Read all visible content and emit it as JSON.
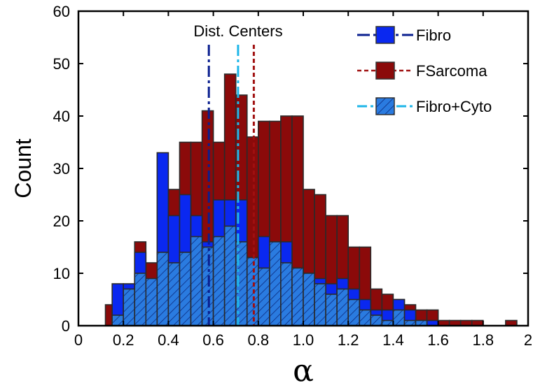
{
  "chart_data": {
    "type": "bar",
    "title": "",
    "xlabel": "α",
    "ylabel": "Count",
    "xlim": [
      0,
      2
    ],
    "ylim": [
      0,
      60
    ],
    "bin_width": 0.05,
    "x_ticks": [
      "0",
      "0.2",
      "0.4",
      "0.6",
      "0.8",
      "1.0",
      "1.2",
      "1.4",
      "1.6",
      "1.8",
      "2"
    ],
    "y_ticks": [
      "0",
      "10",
      "20",
      "30",
      "40",
      "50",
      "60"
    ],
    "legend_placement": "top-right",
    "annotation": "Dist. Centers",
    "series": [
      {
        "name": "FSarcoma",
        "color": "#8B0A0A",
        "bins": [
          {
            "x0": 0.12,
            "x1": 0.15,
            "y": 4
          },
          {
            "x0": 0.25,
            "x1": 0.3,
            "y": 16
          },
          {
            "x0": 0.3,
            "x1": 0.35,
            "y": 12
          },
          {
            "x0": 0.4,
            "x1": 0.45,
            "y": 26
          },
          {
            "x0": 0.45,
            "x1": 0.5,
            "y": 35
          },
          {
            "x0": 0.5,
            "x1": 0.55,
            "y": 35
          },
          {
            "x0": 0.55,
            "x1": 0.6,
            "y": 41
          },
          {
            "x0": 0.6,
            "x1": 0.65,
            "y": 35
          },
          {
            "x0": 0.65,
            "x1": 0.7,
            "y": 48
          },
          {
            "x0": 0.7,
            "x1": 0.75,
            "y": 44
          },
          {
            "x0": 0.75,
            "x1": 0.8,
            "y": 36
          },
          {
            "x0": 0.8,
            "x1": 0.85,
            "y": 39
          },
          {
            "x0": 0.85,
            "x1": 0.9,
            "y": 39
          },
          {
            "x0": 0.9,
            "x1": 0.95,
            "y": 40
          },
          {
            "x0": 0.95,
            "x1": 1.0,
            "y": 40
          },
          {
            "x0": 1.0,
            "x1": 1.05,
            "y": 26
          },
          {
            "x0": 1.05,
            "x1": 1.1,
            "y": 25
          },
          {
            "x0": 1.1,
            "x1": 1.15,
            "y": 21
          },
          {
            "x0": 1.15,
            "x1": 1.2,
            "y": 21
          },
          {
            "x0": 1.2,
            "x1": 1.25,
            "y": 15
          },
          {
            "x0": 1.25,
            "x1": 1.3,
            "y": 15
          },
          {
            "x0": 1.3,
            "x1": 1.35,
            "y": 7
          },
          {
            "x0": 1.35,
            "x1": 1.4,
            "y": 6
          },
          {
            "x0": 1.4,
            "x1": 1.45,
            "y": 5
          },
          {
            "x0": 1.45,
            "x1": 1.5,
            "y": 4
          },
          {
            "x0": 1.5,
            "x1": 1.55,
            "y": 3
          },
          {
            "x0": 1.55,
            "x1": 1.6,
            "y": 3
          },
          {
            "x0": 1.6,
            "x1": 1.65,
            "y": 1
          },
          {
            "x0": 1.65,
            "x1": 1.7,
            "y": 1
          },
          {
            "x0": 1.7,
            "x1": 1.75,
            "y": 1
          },
          {
            "x0": 1.75,
            "x1": 1.8,
            "y": 1
          },
          {
            "x0": 1.9,
            "x1": 1.95,
            "y": 1
          }
        ]
      },
      {
        "name": "Fibro",
        "color": "#0A28F0",
        "bins": [
          {
            "x0": 0.15,
            "x1": 0.2,
            "y": 8
          },
          {
            "x0": 0.2,
            "x1": 0.25,
            "y": 8
          },
          {
            "x0": 0.25,
            "x1": 0.3,
            "y": 14
          },
          {
            "x0": 0.3,
            "x1": 0.35,
            "y": 7
          },
          {
            "x0": 0.35,
            "x1": 0.4,
            "y": 33
          },
          {
            "x0": 0.4,
            "x1": 0.45,
            "y": 21
          },
          {
            "x0": 0.45,
            "x1": 0.5,
            "y": 25
          },
          {
            "x0": 0.5,
            "x1": 0.55,
            "y": 21
          },
          {
            "x0": 0.55,
            "x1": 0.6,
            "y": 16
          },
          {
            "x0": 0.6,
            "x1": 0.65,
            "y": 24
          },
          {
            "x0": 0.65,
            "x1": 0.7,
            "y": 24
          },
          {
            "x0": 0.7,
            "x1": 0.75,
            "y": 24
          },
          {
            "x0": 0.75,
            "x1": 0.8,
            "y": 13
          },
          {
            "x0": 0.8,
            "x1": 0.85,
            "y": 17
          },
          {
            "x0": 0.85,
            "x1": 0.9,
            "y": 14
          },
          {
            "x0": 0.9,
            "x1": 0.95,
            "y": 16
          },
          {
            "x0": 0.95,
            "x1": 1.0,
            "y": 11
          },
          {
            "x0": 1.0,
            "x1": 1.05,
            "y": 10
          },
          {
            "x0": 1.05,
            "x1": 1.1,
            "y": 9
          },
          {
            "x0": 1.1,
            "x1": 1.15,
            "y": 8
          },
          {
            "x0": 1.15,
            "x1": 1.2,
            "y": 9
          },
          {
            "x0": 1.2,
            "x1": 1.25,
            "y": 7
          },
          {
            "x0": 1.25,
            "x1": 1.3,
            "y": 5
          },
          {
            "x0": 1.3,
            "x1": 1.35,
            "y": 3
          },
          {
            "x0": 1.35,
            "x1": 1.4,
            "y": 3
          },
          {
            "x0": 1.4,
            "x1": 1.45,
            "y": 5
          },
          {
            "x0": 1.45,
            "x1": 1.5,
            "y": 3
          },
          {
            "x0": 1.5,
            "x1": 1.55,
            "y": 1
          },
          {
            "x0": 1.55,
            "x1": 1.6,
            "y": 1
          }
        ]
      },
      {
        "name": "Fibro+Cyto",
        "color": "#2A7BE0",
        "bins": [
          {
            "x0": 0.15,
            "x1": 0.2,
            "y": 2
          },
          {
            "x0": 0.2,
            "x1": 0.25,
            "y": 7
          },
          {
            "x0": 0.25,
            "x1": 0.3,
            "y": 10
          },
          {
            "x0": 0.3,
            "x1": 0.35,
            "y": 9
          },
          {
            "x0": 0.35,
            "x1": 0.4,
            "y": 14
          },
          {
            "x0": 0.4,
            "x1": 0.45,
            "y": 12
          },
          {
            "x0": 0.45,
            "x1": 0.5,
            "y": 14
          },
          {
            "x0": 0.5,
            "x1": 0.55,
            "y": 17
          },
          {
            "x0": 0.55,
            "x1": 0.6,
            "y": 15
          },
          {
            "x0": 0.6,
            "x1": 0.65,
            "y": 17
          },
          {
            "x0": 0.65,
            "x1": 0.7,
            "y": 19
          },
          {
            "x0": 0.7,
            "x1": 0.75,
            "y": 16
          },
          {
            "x0": 0.75,
            "x1": 0.8,
            "y": 13
          },
          {
            "x0": 0.8,
            "x1": 0.85,
            "y": 11
          },
          {
            "x0": 0.85,
            "x1": 0.9,
            "y": 16
          },
          {
            "x0": 0.9,
            "x1": 0.95,
            "y": 12
          },
          {
            "x0": 0.95,
            "x1": 1.0,
            "y": 11
          },
          {
            "x0": 1.0,
            "x1": 1.05,
            "y": 10
          },
          {
            "x0": 1.05,
            "x1": 1.1,
            "y": 8
          },
          {
            "x0": 1.1,
            "x1": 1.15,
            "y": 6
          },
          {
            "x0": 1.15,
            "x1": 1.2,
            "y": 7
          },
          {
            "x0": 1.2,
            "x1": 1.25,
            "y": 5
          },
          {
            "x0": 1.25,
            "x1": 1.3,
            "y": 3
          },
          {
            "x0": 1.3,
            "x1": 1.35,
            "y": 2
          },
          {
            "x0": 1.35,
            "x1": 1.4,
            "y": 1
          },
          {
            "x0": 1.4,
            "x1": 1.45,
            "y": 3
          },
          {
            "x0": 1.45,
            "x1": 1.5,
            "y": 1
          },
          {
            "x0": 1.5,
            "x1": 1.55,
            "y": 1
          }
        ]
      }
    ],
    "center_lines": [
      {
        "series": "Fibro",
        "x": 0.58,
        "color": "#0A1F8F",
        "style": "dash-dot"
      },
      {
        "series": "Fibro+Cyto",
        "x": 0.71,
        "color": "#1FB6E8",
        "style": "dash-dot"
      },
      {
        "series": "FSarcoma",
        "x": 0.78,
        "color": "#A01010",
        "style": "dashed"
      }
    ]
  }
}
